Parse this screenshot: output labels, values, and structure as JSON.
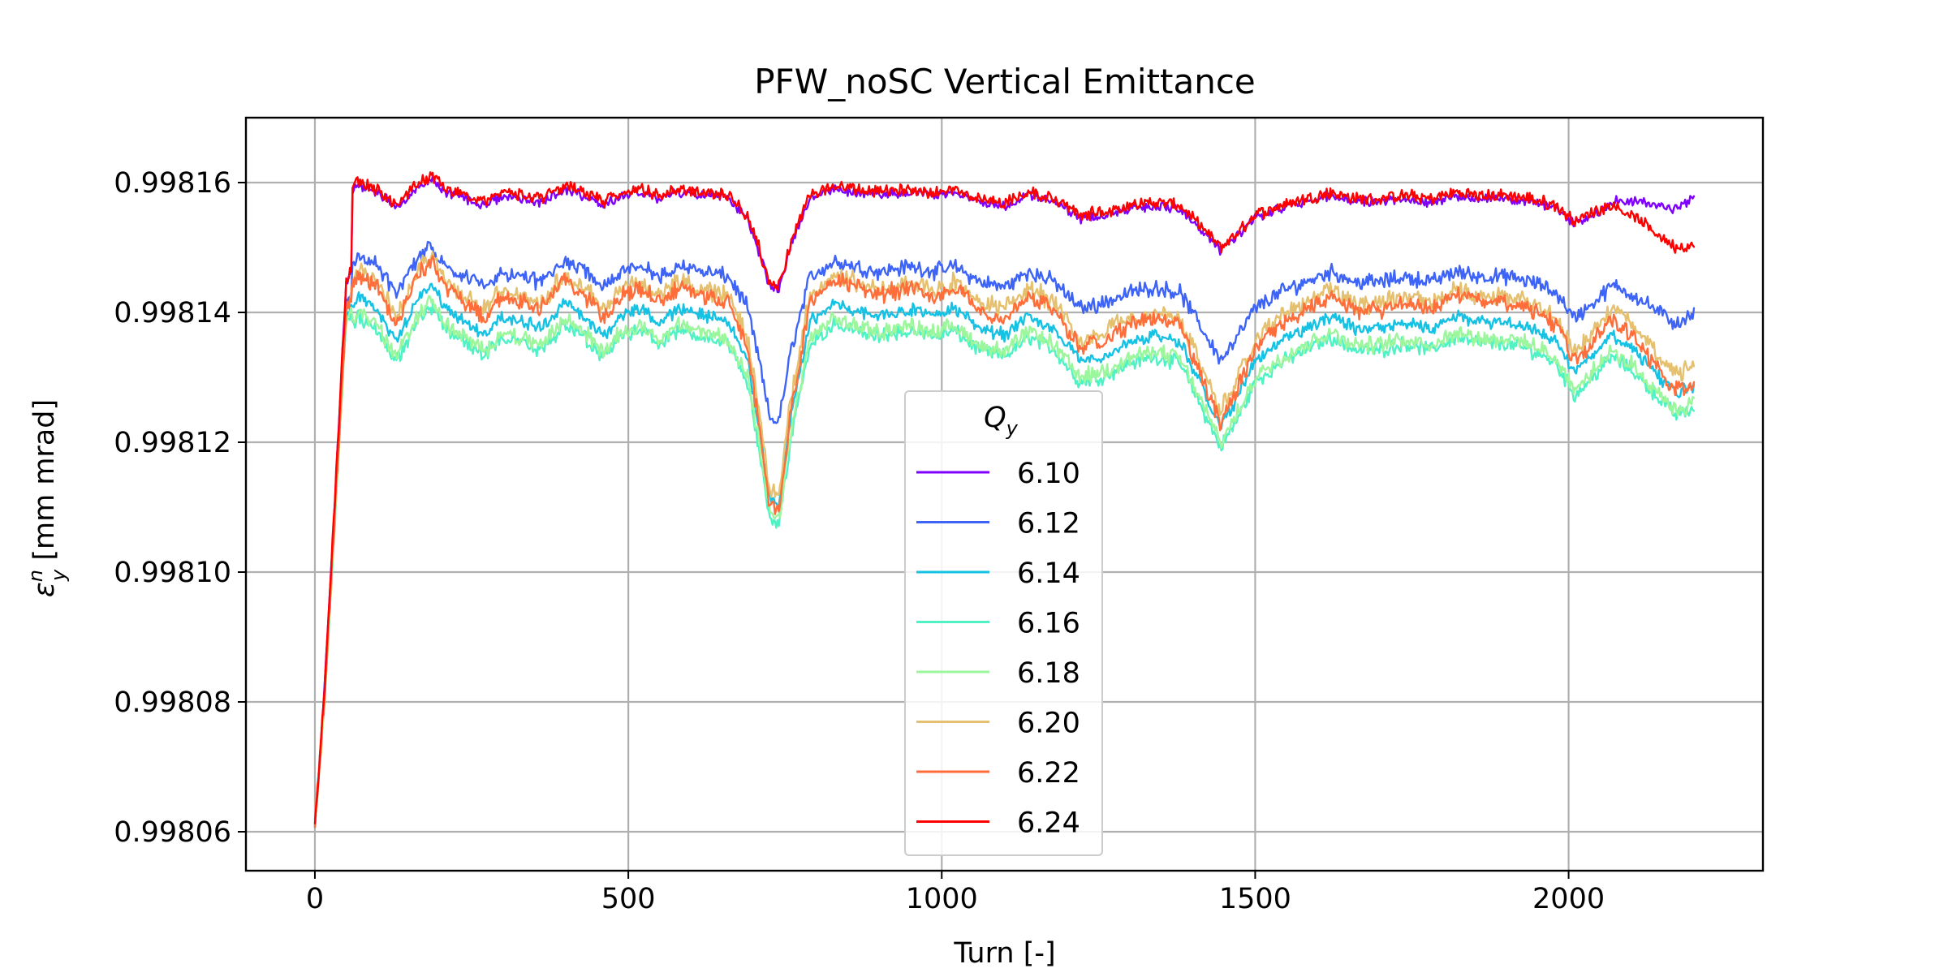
{
  "chart_data": {
    "type": "line",
    "title": "PFW_noSC Vertical Emittance",
    "xlabel": "Turn [-]",
    "ylabel_symbol": "ε",
    "ylabel_sub": "y",
    "ylabel_sup": "n",
    "ylabel_unit": " [mm mrad]",
    "xlim": [
      -110,
      2310
    ],
    "ylim": [
      0.998054,
      0.99817
    ],
    "xticks": [
      0,
      500,
      1000,
      1500,
      2000
    ],
    "xtick_labels": [
      "0",
      "500",
      "1000",
      "1500",
      "2000"
    ],
    "yticks": [
      0.99806,
      0.99808,
      0.9981,
      0.99812,
      0.99814,
      0.99816
    ],
    "ytick_labels": [
      "0.99806",
      "0.99808",
      "0.99810",
      "0.99812",
      "0.99814",
      "0.99816"
    ],
    "grid": true,
    "legend": {
      "title_symbol": "Q",
      "title_sub": "y",
      "placement": "lower-center"
    },
    "series_template": [
      [
        0,
        0.998061
      ],
      [
        15,
        0.99808
      ],
      [
        30,
        0.998105
      ],
      [
        50,
        0.99814
      ],
      [
        70,
        0.998143
      ],
      [
        100,
        0.998141
      ],
      [
        130,
        0.998136
      ],
      [
        160,
        0.998142
      ],
      [
        185,
        0.998145
      ],
      [
        210,
        0.998141
      ],
      [
        240,
        0.998139
      ],
      [
        270,
        0.998137
      ],
      [
        300,
        0.99814
      ],
      [
        330,
        0.998139
      ],
      [
        360,
        0.998138
      ],
      [
        400,
        0.998142
      ],
      [
        430,
        0.99814
      ],
      [
        460,
        0.998137
      ],
      [
        490,
        0.99814
      ],
      [
        520,
        0.998141
      ],
      [
        550,
        0.998139
      ],
      [
        580,
        0.998141
      ],
      [
        620,
        0.99814
      ],
      [
        660,
        0.998139
      ],
      [
        690,
        0.998133
      ],
      [
        710,
        0.998122
      ],
      [
        725,
        0.998112
      ],
      [
        740,
        0.998111
      ],
      [
        760,
        0.998125
      ],
      [
        790,
        0.998139
      ],
      [
        830,
        0.998142
      ],
      [
        860,
        0.998141
      ],
      [
        900,
        0.99814
      ],
      [
        950,
        0.998141
      ],
      [
        990,
        0.99814
      ],
      [
        1020,
        0.998141
      ],
      [
        1060,
        0.998138
      ],
      [
        1100,
        0.998137
      ],
      [
        1140,
        0.99814
      ],
      [
        1180,
        0.998138
      ],
      [
        1220,
        0.998133
      ],
      [
        1260,
        0.998134
      ],
      [
        1300,
        0.998136
      ],
      [
        1340,
        0.998137
      ],
      [
        1380,
        0.998136
      ],
      [
        1420,
        0.998128
      ],
      [
        1445,
        0.998123
      ],
      [
        1470,
        0.998127
      ],
      [
        1500,
        0.998133
      ],
      [
        1540,
        0.998136
      ],
      [
        1580,
        0.998138
      ],
      [
        1620,
        0.99814
      ],
      [
        1660,
        0.998138
      ],
      [
        1700,
        0.998138
      ],
      [
        1740,
        0.998139
      ],
      [
        1780,
        0.998138
      ],
      [
        1820,
        0.99814
      ],
      [
        1860,
        0.998139
      ],
      [
        1900,
        0.998139
      ],
      [
        1940,
        0.998138
      ],
      [
        1980,
        0.998136
      ],
      [
        2010,
        0.998131
      ],
      [
        2040,
        0.998134
      ],
      [
        2070,
        0.998137
      ],
      [
        2100,
        0.998135
      ],
      [
        2140,
        0.998131
      ],
      [
        2170,
        0.998128
      ],
      [
        2200,
        0.998129
      ]
    ],
    "series": [
      {
        "name": "6.10",
        "color": "#8000ff",
        "offset": 1.85e-05,
        "spread": 3e-07,
        "scale": 0.5,
        "end_delta": 5e-06,
        "noise": 6e-07,
        "mode": "high"
      },
      {
        "name": "6.12",
        "color": "#3e64f7",
        "offset": 6.5e-06,
        "spread": 8e-07,
        "scale": 0.8,
        "end_delta": 2e-06,
        "noise": 7e-07,
        "mode": "mid"
      },
      {
        "name": "6.14",
        "color": "#16c2e3",
        "offset": -5e-07,
        "spread": 6e-07,
        "scale": 1.0,
        "end_delta": 0.0,
        "noise": 6e-07,
        "mode": "mid"
      },
      {
        "name": "6.16",
        "color": "#4ef2c4",
        "offset": -3.8e-06,
        "spread": 6e-07,
        "scale": 1.0,
        "end_delta": 0.0,
        "noise": 8e-07,
        "mode": "low"
      },
      {
        "name": "6.18",
        "color": "#9cf69c",
        "offset": -3e-06,
        "spread": 6e-07,
        "scale": 1.0,
        "end_delta": 0.0,
        "noise": 9e-07,
        "mode": "low"
      },
      {
        "name": "6.20",
        "color": "#e5c06e",
        "offset": 3.5e-06,
        "spread": 1e-06,
        "scale": 1.1,
        "end_delta": 0.0,
        "noise": 8e-07,
        "mode": "mid"
      },
      {
        "name": "6.22",
        "color": "#ff6d3a",
        "offset": 2.5e-06,
        "spread": 9e-07,
        "scale": 1.15,
        "end_delta": -1e-06,
        "noise": 7e-07,
        "mode": "mid"
      },
      {
        "name": "6.24",
        "color": "#ff0000",
        "offset": 1.9e-05,
        "spread": 3e-07,
        "scale": 0.5,
        "end_delta": -3e-06,
        "noise": 8e-07,
        "mode": "high"
      }
    ]
  }
}
